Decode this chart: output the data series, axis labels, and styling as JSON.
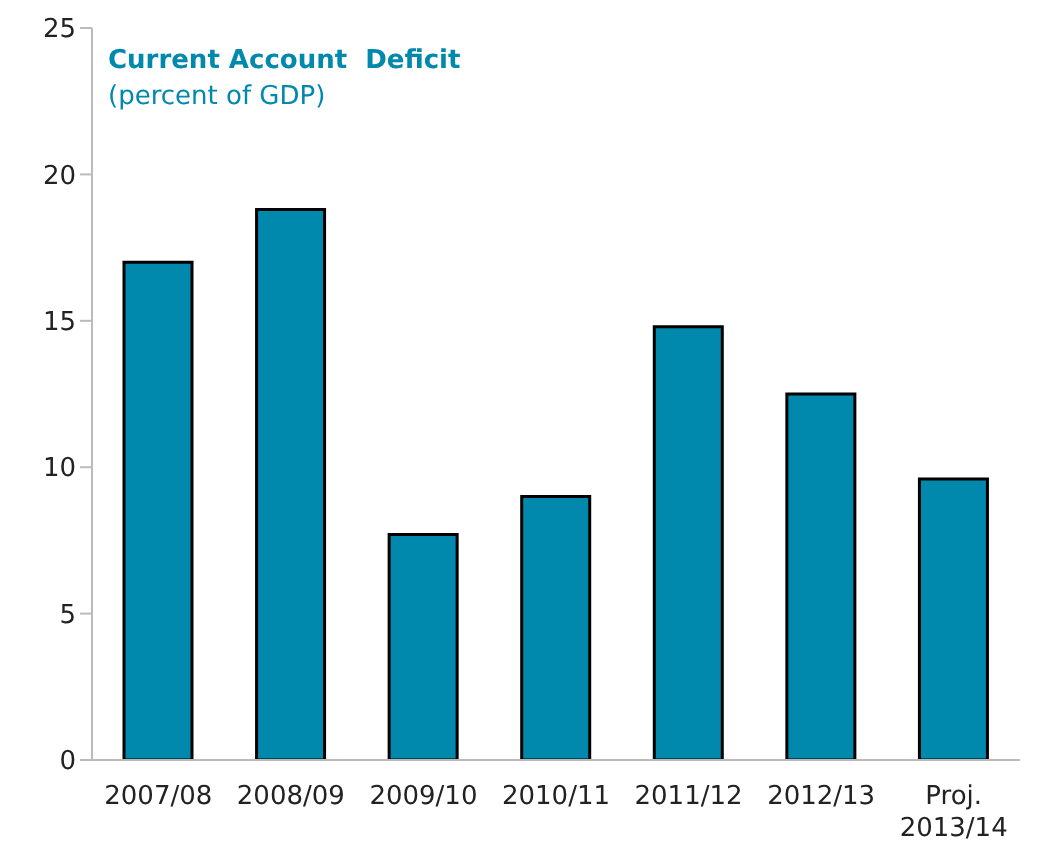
{
  "chart_data": {
    "type": "bar",
    "title": "Current Account  Deficit",
    "subtitle": "(percent of GDP)",
    "categories": [
      "2007/08",
      "2008/09",
      "2009/10",
      "2010/11",
      "2011/12",
      "2012/13",
      "Proj.\n2013/14"
    ],
    "values": [
      17.0,
      18.8,
      7.7,
      9.0,
      14.8,
      12.5,
      9.6
    ],
    "color": "#0088ad",
    "ylim": [
      0,
      25
    ],
    "yticks": [
      0,
      5,
      10,
      15,
      20,
      25
    ],
    "grid": false
  }
}
